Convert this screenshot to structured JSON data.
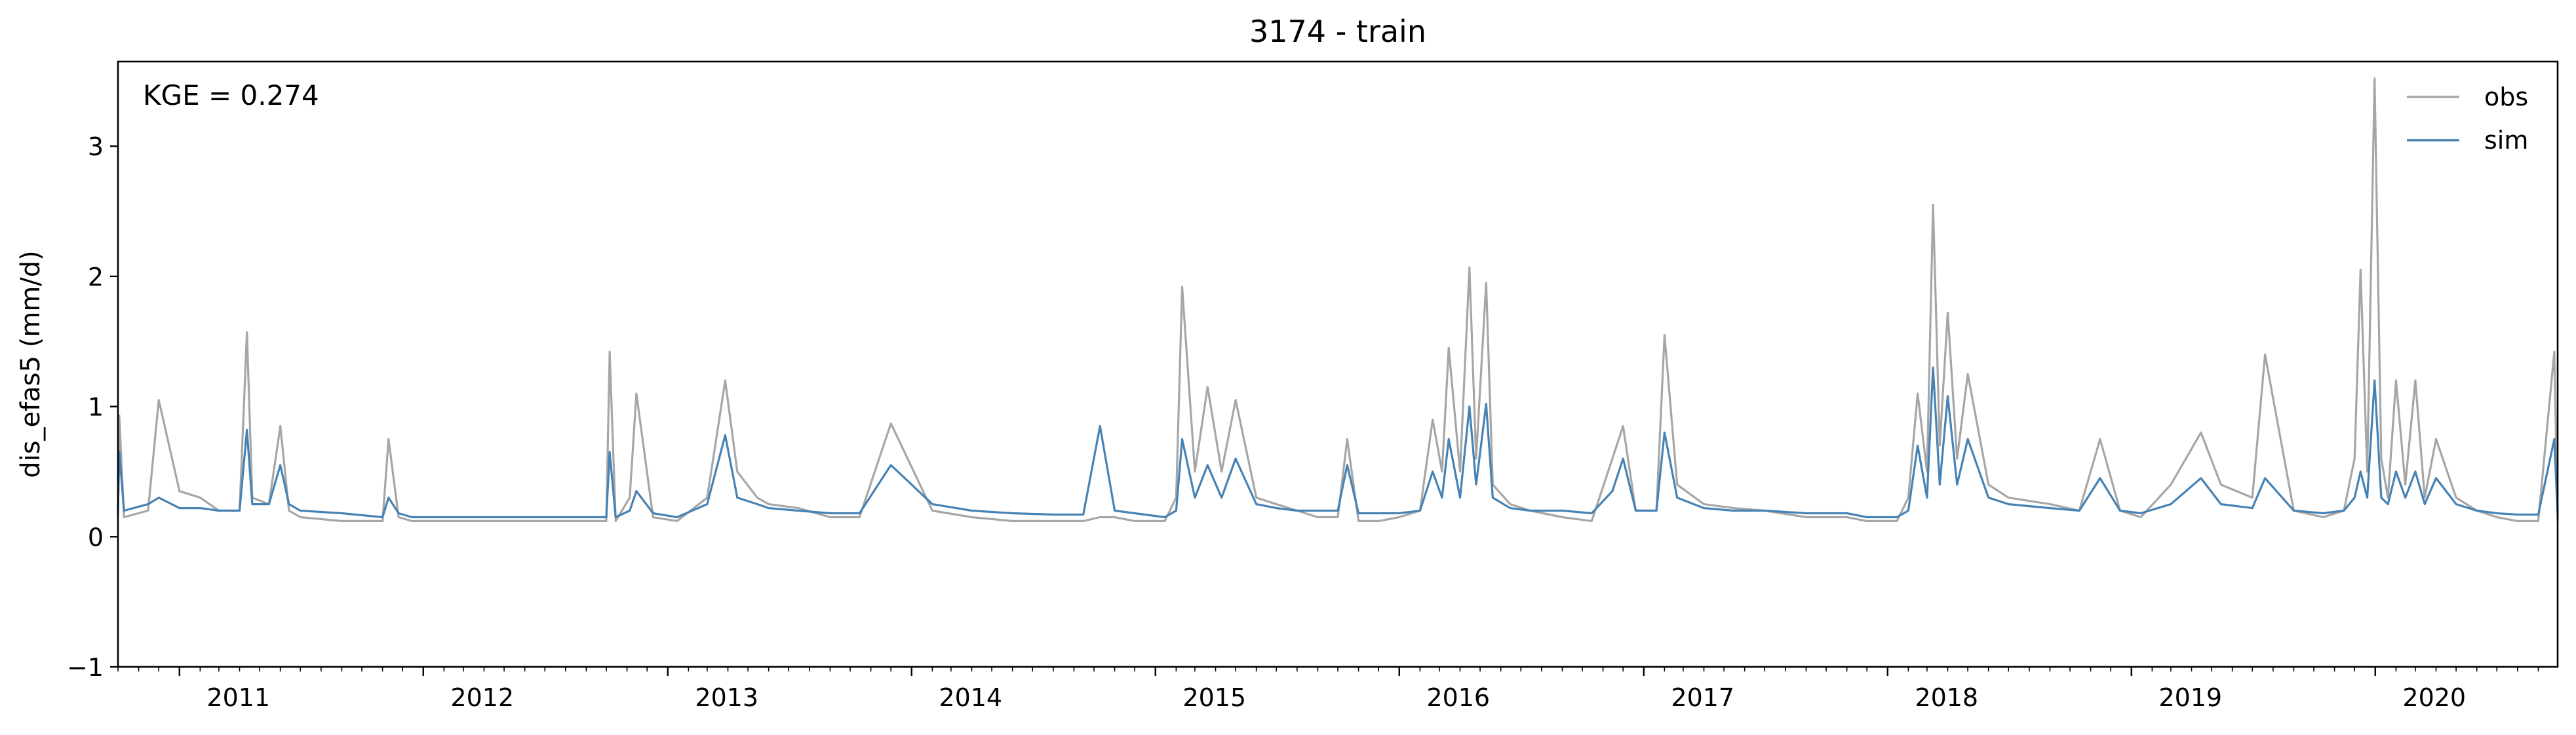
{
  "chart_data": {
    "type": "line",
    "title": "3174 - train",
    "ylabel": "dis_efas5 (mm/d)",
    "xlabel": "",
    "annotation": "KGE = 0.274",
    "xlim": [
      "2010-10-01",
      "2020-09-30"
    ],
    "ylim": [
      -1,
      3.65
    ],
    "y_ticks": [
      -1,
      0,
      1,
      2,
      3
    ],
    "y_tick_labels": [
      "−1",
      "0",
      "1",
      "2",
      "3"
    ],
    "x_ticks": [
      "2011-01-01",
      "2012-01-01",
      "2013-01-01",
      "2014-01-01",
      "2015-01-01",
      "2016-01-01",
      "2017-01-01",
      "2018-01-01",
      "2019-01-01",
      "2020-01-01"
    ],
    "x_tick_labels": [
      "2011",
      "2012",
      "2013",
      "2014",
      "2015",
      "2016",
      "2017",
      "2018",
      "2019",
      "2020"
    ],
    "legend_position": "top-right",
    "grid": false,
    "series": [
      {
        "name": "obs",
        "color": "#a6a6a6",
        "x": [
          "2010-10-01",
          "2010-10-03",
          "2010-10-10",
          "2010-11-15",
          "2010-12-01",
          "2011-01-01",
          "2011-02-01",
          "2011-03-01",
          "2011-04-01",
          "2011-04-12",
          "2011-04-20",
          "2011-05-15",
          "2011-06-01",
          "2011-06-14",
          "2011-07-01",
          "2011-09-01",
          "2011-11-01",
          "2011-11-10",
          "2011-11-25",
          "2011-12-15",
          "2012-02-01",
          "2012-04-01",
          "2012-06-01",
          "2012-08-01",
          "2012-10-01",
          "2012-10-06",
          "2012-10-15",
          "2012-11-05",
          "2012-11-15",
          "2012-12-10",
          "2013-01-15",
          "2013-03-01",
          "2013-03-28",
          "2013-04-15",
          "2013-05-15",
          "2013-06-01",
          "2013-07-15",
          "2013-09-01",
          "2013-10-15",
          "2013-12-01",
          "2014-02-01",
          "2014-04-01",
          "2014-06-01",
          "2014-08-01",
          "2014-09-15",
          "2014-10-10",
          "2014-11-01",
          "2014-12-01",
          "2015-01-15",
          "2015-02-01",
          "2015-02-10",
          "2015-03-01",
          "2015-03-20",
          "2015-04-10",
          "2015-05-01",
          "2015-06-01",
          "2015-07-01",
          "2015-08-01",
          "2015-09-01",
          "2015-10-01",
          "2015-10-15",
          "2015-11-01",
          "2015-12-01",
          "2016-01-01",
          "2016-02-01",
          "2016-02-20",
          "2016-03-05",
          "2016-03-15",
          "2016-04-01",
          "2016-04-15",
          "2016-04-25",
          "2016-05-10",
          "2016-05-20",
          "2016-06-15",
          "2016-07-15",
          "2016-09-01",
          "2016-10-15",
          "2016-11-15",
          "2016-12-01",
          "2016-12-20",
          "2017-01-20",
          "2017-02-01",
          "2017-02-20",
          "2017-04-01",
          "2017-05-15",
          "2017-07-01",
          "2017-09-01",
          "2017-11-01",
          "2017-12-01",
          "2018-01-15",
          "2018-02-01",
          "2018-02-15",
          "2018-03-01",
          "2018-03-10",
          "2018-03-20",
          "2018-04-01",
          "2018-04-15",
          "2018-05-01",
          "2018-06-01",
          "2018-07-01",
          "2018-09-01",
          "2018-10-15",
          "2018-11-15",
          "2018-12-15",
          "2019-01-15",
          "2019-03-01",
          "2019-04-15",
          "2019-05-15",
          "2019-07-01",
          "2019-07-20",
          "2019-09-01",
          "2019-10-15",
          "2019-11-15",
          "2019-12-01",
          "2019-12-10",
          "2019-12-20",
          "2019-12-31",
          "2020-01-10",
          "2020-01-20",
          "2020-02-01",
          "2020-02-15",
          "2020-03-01",
          "2020-03-15",
          "2020-04-01",
          "2020-05-01",
          "2020-06-01",
          "2020-07-01",
          "2020-08-01",
          "2020-09-01",
          "2020-09-25",
          "2020-09-30"
        ],
        "values": [
          0.15,
          0.93,
          0.15,
          0.2,
          1.05,
          0.35,
          0.3,
          0.2,
          0.2,
          1.57,
          0.3,
          0.25,
          0.85,
          0.2,
          0.15,
          0.12,
          0.12,
          0.75,
          0.15,
          0.12,
          0.12,
          0.12,
          0.12,
          0.12,
          0.12,
          1.42,
          0.12,
          0.3,
          1.1,
          0.15,
          0.12,
          0.3,
          1.2,
          0.5,
          0.3,
          0.25,
          0.22,
          0.15,
          0.15,
          0.87,
          0.2,
          0.15,
          0.12,
          0.12,
          0.12,
          0.15,
          0.15,
          0.12,
          0.12,
          0.3,
          1.92,
          0.5,
          1.15,
          0.5,
          1.05,
          0.3,
          0.25,
          0.2,
          0.15,
          0.15,
          0.75,
          0.12,
          0.12,
          0.15,
          0.2,
          0.9,
          0.5,
          1.45,
          0.5,
          2.07,
          0.6,
          1.95,
          0.4,
          0.25,
          0.2,
          0.15,
          0.12,
          0.6,
          0.85,
          0.2,
          0.2,
          1.55,
          0.4,
          0.25,
          0.22,
          0.2,
          0.15,
          0.15,
          0.12,
          0.12,
          0.3,
          1.1,
          0.5,
          2.55,
          0.7,
          1.72,
          0.6,
          1.25,
          0.4,
          0.3,
          0.25,
          0.2,
          0.75,
          0.2,
          0.15,
          0.4,
          0.8,
          0.4,
          0.3,
          1.4,
          0.2,
          0.15,
          0.2,
          0.6,
          2.05,
          0.5,
          3.52,
          0.6,
          0.3,
          1.2,
          0.4,
          1.2,
          0.3,
          0.75,
          0.3,
          0.2,
          0.15,
          0.12,
          0.12,
          1.42,
          0.12
        ]
      },
      {
        "name": "sim",
        "color": "#4682b4",
        "x": [
          "2010-10-01",
          "2010-10-03",
          "2010-10-10",
          "2010-11-15",
          "2010-12-01",
          "2011-01-01",
          "2011-02-01",
          "2011-03-01",
          "2011-04-01",
          "2011-04-12",
          "2011-04-20",
          "2011-05-15",
          "2011-06-01",
          "2011-06-14",
          "2011-07-01",
          "2011-09-01",
          "2011-11-01",
          "2011-11-10",
          "2011-11-25",
          "2011-12-15",
          "2012-02-01",
          "2012-04-01",
          "2012-06-01",
          "2012-08-01",
          "2012-10-01",
          "2012-10-06",
          "2012-10-15",
          "2012-11-05",
          "2012-11-15",
          "2012-12-10",
          "2013-01-15",
          "2013-03-01",
          "2013-03-28",
          "2013-04-15",
          "2013-05-15",
          "2013-06-01",
          "2013-07-15",
          "2013-09-01",
          "2013-10-15",
          "2013-12-01",
          "2014-02-01",
          "2014-04-01",
          "2014-06-01",
          "2014-08-01",
          "2014-09-15",
          "2014-10-10",
          "2014-11-01",
          "2014-12-01",
          "2015-01-15",
          "2015-02-01",
          "2015-02-10",
          "2015-03-01",
          "2015-03-20",
          "2015-04-10",
          "2015-05-01",
          "2015-06-01",
          "2015-07-01",
          "2015-08-01",
          "2015-09-01",
          "2015-10-01",
          "2015-10-15",
          "2015-11-01",
          "2015-12-01",
          "2016-01-01",
          "2016-02-01",
          "2016-02-20",
          "2016-03-05",
          "2016-03-15",
          "2016-04-01",
          "2016-04-15",
          "2016-04-25",
          "2016-05-10",
          "2016-05-20",
          "2016-06-15",
          "2016-07-15",
          "2016-09-01",
          "2016-10-15",
          "2016-11-15",
          "2016-12-01",
          "2016-12-20",
          "2017-01-20",
          "2017-02-01",
          "2017-02-20",
          "2017-04-01",
          "2017-05-15",
          "2017-07-01",
          "2017-09-01",
          "2017-11-01",
          "2017-12-01",
          "2018-01-15",
          "2018-02-01",
          "2018-02-15",
          "2018-03-01",
          "2018-03-10",
          "2018-03-20",
          "2018-04-01",
          "2018-04-15",
          "2018-05-01",
          "2018-06-01",
          "2018-07-01",
          "2018-09-01",
          "2018-10-15",
          "2018-11-15",
          "2018-12-15",
          "2019-01-15",
          "2019-03-01",
          "2019-04-15",
          "2019-05-15",
          "2019-07-01",
          "2019-07-20",
          "2019-09-01",
          "2019-10-15",
          "2019-11-15",
          "2019-12-01",
          "2019-12-10",
          "2019-12-20",
          "2019-12-31",
          "2020-01-10",
          "2020-01-20",
          "2020-02-01",
          "2020-02-15",
          "2020-03-01",
          "2020-03-15",
          "2020-04-01",
          "2020-05-01",
          "2020-06-01",
          "2020-07-01",
          "2020-08-01",
          "2020-09-01",
          "2020-09-25",
          "2020-09-30"
        ],
        "values": [
          0.2,
          0.65,
          0.2,
          0.25,
          0.3,
          0.22,
          0.22,
          0.2,
          0.2,
          0.82,
          0.25,
          0.25,
          0.55,
          0.25,
          0.2,
          0.18,
          0.15,
          0.3,
          0.18,
          0.15,
          0.15,
          0.15,
          0.15,
          0.15,
          0.15,
          0.65,
          0.15,
          0.2,
          0.35,
          0.18,
          0.15,
          0.25,
          0.78,
          0.3,
          0.25,
          0.22,
          0.2,
          0.18,
          0.18,
          0.55,
          0.25,
          0.2,
          0.18,
          0.17,
          0.17,
          0.85,
          0.2,
          0.18,
          0.15,
          0.2,
          0.75,
          0.3,
          0.55,
          0.3,
          0.6,
          0.25,
          0.22,
          0.2,
          0.2,
          0.2,
          0.55,
          0.18,
          0.18,
          0.18,
          0.2,
          0.5,
          0.3,
          0.75,
          0.3,
          1.0,
          0.4,
          1.02,
          0.3,
          0.22,
          0.2,
          0.2,
          0.18,
          0.35,
          0.6,
          0.2,
          0.2,
          0.8,
          0.3,
          0.22,
          0.2,
          0.2,
          0.18,
          0.18,
          0.15,
          0.15,
          0.2,
          0.7,
          0.3,
          1.3,
          0.4,
          1.08,
          0.4,
          0.75,
          0.3,
          0.25,
          0.22,
          0.2,
          0.45,
          0.2,
          0.18,
          0.25,
          0.45,
          0.25,
          0.22,
          0.45,
          0.2,
          0.18,
          0.2,
          0.3,
          0.5,
          0.3,
          1.2,
          0.3,
          0.25,
          0.5,
          0.3,
          0.5,
          0.25,
          0.45,
          0.25,
          0.2,
          0.18,
          0.17,
          0.17,
          0.75,
          0.17
        ]
      }
    ]
  }
}
